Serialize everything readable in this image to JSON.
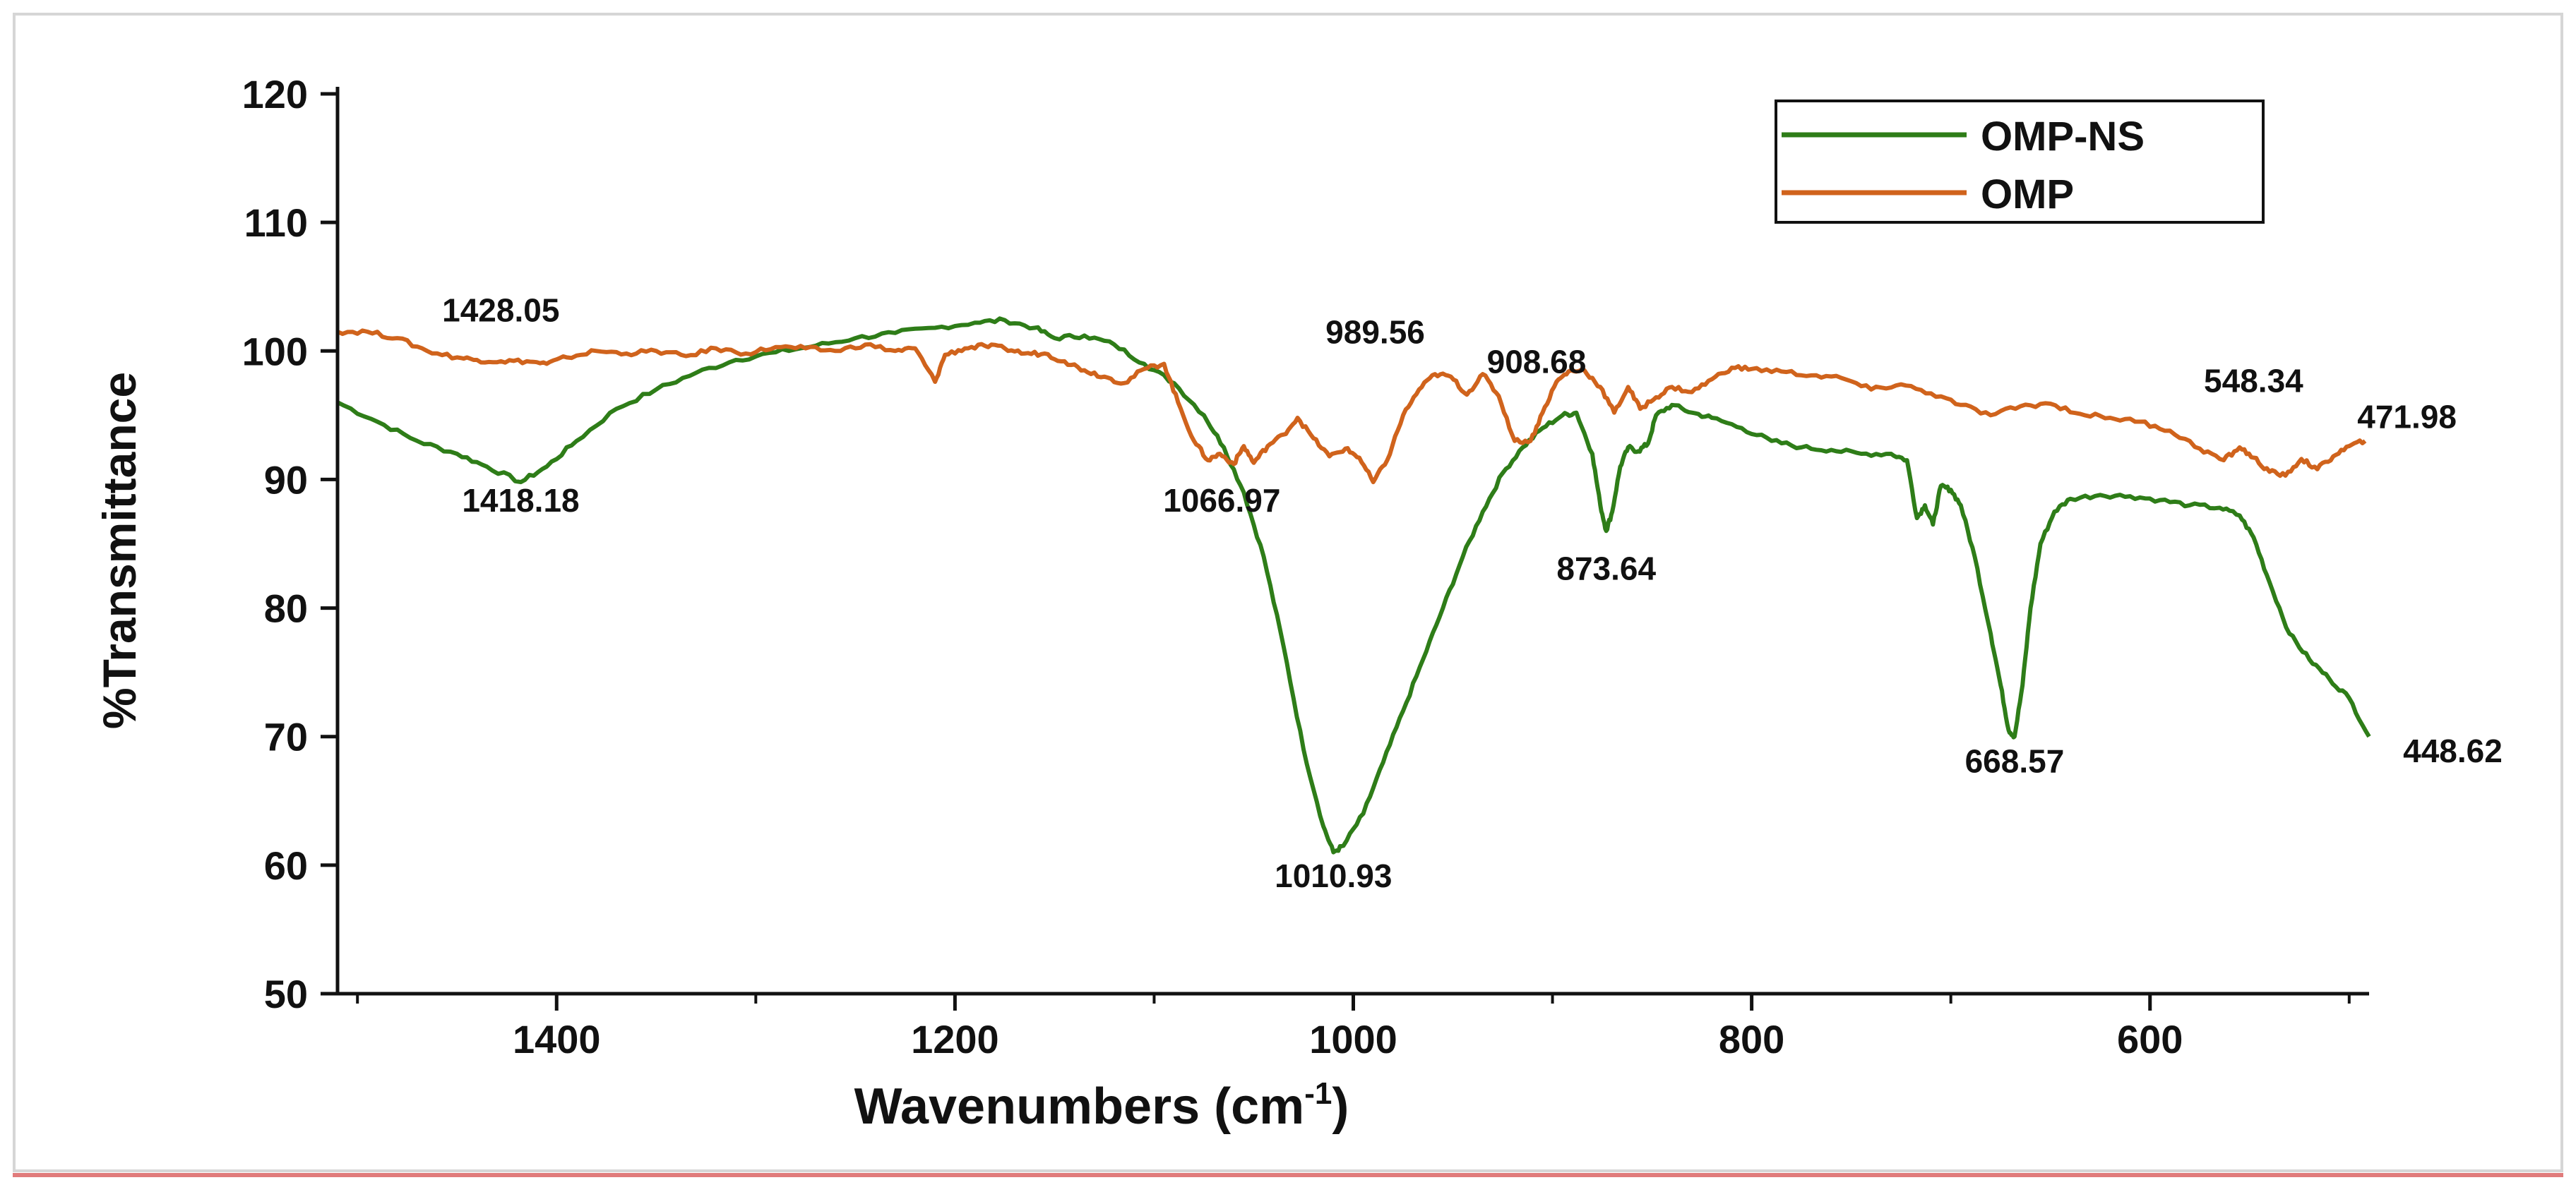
{
  "chart_data": {
    "type": "line",
    "title": "",
    "xlabel": "Wavenumbers (cm",
    "xlabel_superscript": "-1",
    "xlabel_suffix": ")",
    "ylabel": "%Transmittance",
    "xlim": [
      1510,
      490
    ],
    "ylim": [
      50,
      120
    ],
    "x_reversed": true,
    "grid": false,
    "legend_position": "top-right",
    "x_ticks": [
      1400,
      1200,
      1000,
      800,
      600
    ],
    "y_ticks": [
      50,
      60,
      70,
      80,
      90,
      100,
      110,
      120
    ],
    "series": [
      {
        "name": "OMP-NS",
        "color": "#2e7d18",
        "x": [
          1510,
          1490,
          1470,
          1450,
          1435,
          1418,
          1405,
          1390,
          1370,
          1350,
          1330,
          1310,
          1290,
          1270,
          1250,
          1230,
          1210,
          1190,
          1175,
          1160,
          1150,
          1135,
          1120,
          1105,
          1090,
          1075,
          1065,
          1055,
          1045,
          1035,
          1025,
          1015,
          1010,
          1005,
          995,
          985,
          975,
          965,
          955,
          945,
          935,
          925,
          915,
          905,
          895,
          888,
          880,
          876,
          873,
          870,
          866,
          862,
          857,
          852,
          848,
          840,
          830,
          820,
          805,
          790,
          775,
          760,
          745,
          730,
          722,
          717,
          713,
          709,
          705,
          700,
          695,
          688,
          680,
          675,
          671,
          668,
          664,
          660,
          655,
          648,
          640,
          625,
          610,
          595,
          580,
          565,
          555,
          548,
          540,
          530,
          520,
          510,
          500,
          490
        ],
        "values": [
          96,
          94.5,
          93,
          92,
          91,
          89.8,
          91,
          93,
          95.5,
          97,
          98.3,
          99.3,
          99.9,
          100.4,
          101,
          101.4,
          101.8,
          102.2,
          102.4,
          101.8,
          101,
          101.2,
          100.5,
          99,
          97.5,
          95,
          92.5,
          89,
          84,
          77,
          69,
          63,
          61,
          61.5,
          64,
          68,
          72,
          76,
          80,
          84,
          87.5,
          90.5,
          92.5,
          94,
          95,
          95.2,
          92,
          88,
          86,
          87.5,
          91,
          92.5,
          92.2,
          92.8,
          95,
          95.8,
          95.2,
          94.8,
          94,
          93,
          92.5,
          92.3,
          92,
          92,
          91.5,
          87,
          88,
          86.5,
          89.5,
          89.2,
          88,
          84,
          78,
          74,
          70.5,
          70,
          74,
          80,
          85,
          87.5,
          88.5,
          88.8,
          88.7,
          88.4,
          88,
          87.8,
          87.2,
          85.5,
          82,
          78,
          76,
          74.5,
          73,
          70
        ]
      },
      {
        "name": "OMP",
        "color": "#d0631c",
        "x": [
          1510,
          1495,
          1480,
          1465,
          1450,
          1440,
          1428,
          1415,
          1405,
          1395,
          1380,
          1365,
          1350,
          1335,
          1320,
          1305,
          1290,
          1275,
          1260,
          1245,
          1230,
          1220,
          1210,
          1205,
          1195,
          1185,
          1175,
          1165,
          1155,
          1145,
          1135,
          1125,
          1115,
          1105,
          1095,
          1088,
          1080,
          1073,
          1067,
          1060,
          1055,
          1050,
          1043,
          1035,
          1028,
          1020,
          1012,
          1004,
          997,
          990,
          983,
          975,
          967,
          959,
          951,
          943,
          935,
          927,
          919,
          911,
          905,
          898,
          892,
          884,
          876,
          869,
          862,
          856,
          848,
          840,
          830,
          820,
          810,
          800,
          785,
          770,
          755,
          740,
          725,
          710,
          695,
          680,
          665,
          650,
          635,
          620,
          605,
          590,
          575,
          563,
          555,
          548,
          540,
          532,
          524,
          516,
          508,
          500,
          492
        ],
        "values": [
          101.5,
          101.5,
          101,
          100,
          99.5,
          99.3,
          99.2,
          99.2,
          99,
          99.5,
          100,
          99.8,
          100,
          99.6,
          100.2,
          99.8,
          100.3,
          100.2,
          100,
          100.5,
          100,
          100.2,
          97.6,
          99.7,
          100.2,
          100.4,
          100.2,
          99.8,
          99.8,
          99.2,
          98.5,
          98,
          97.5,
          98.6,
          99,
          96,
          93,
          91.5,
          92,
          91.2,
          92.6,
          91.3,
          92.6,
          93.5,
          94.8,
          93.2,
          91.8,
          92.4,
          91.7,
          89.8,
          91.5,
          95,
          97,
          98.2,
          98,
          96.6,
          98.2,
          96.5,
          93,
          93,
          95.2,
          97.6,
          98.4,
          98.5,
          97.2,
          95.2,
          97.2,
          95.5,
          96.4,
          97.2,
          96.8,
          97.8,
          98.7,
          98.6,
          98.4,
          98.1,
          97.9,
          97,
          97.4,
          96.7,
          95.8,
          95,
          95.7,
          95.9,
          95.1,
          94.8,
          94.5,
          93.8,
          92.4,
          91.5,
          92.5,
          91.7,
          90.6,
          90.3,
          91.6,
          90.8,
          91.8,
          92.6,
          93
        ]
      }
    ],
    "annotations": [
      {
        "text": "1428.05",
        "x": 1428,
        "y": 102.3
      },
      {
        "text": "1418.18",
        "x": 1418,
        "y": 87.5
      },
      {
        "text": "1066.97",
        "x": 1066,
        "y": 87.5
      },
      {
        "text": "1010.93",
        "x": 1010,
        "y": 58.3
      },
      {
        "text": "989.56",
        "x": 989,
        "y": 100.6
      },
      {
        "text": "873.64",
        "x": 873,
        "y": 82.2
      },
      {
        "text": "908.68",
        "x": 908,
        "y": 98.3
      },
      {
        "text": "548.34",
        "x": 548,
        "y": 96.8
      },
      {
        "text": "471.98",
        "x": 471,
        "y": 94.0
      },
      {
        "text": "668.57",
        "x": 668,
        "y": 67.2
      },
      {
        "text": "448.62",
        "x": 448,
        "y": 68.0
      }
    ]
  }
}
